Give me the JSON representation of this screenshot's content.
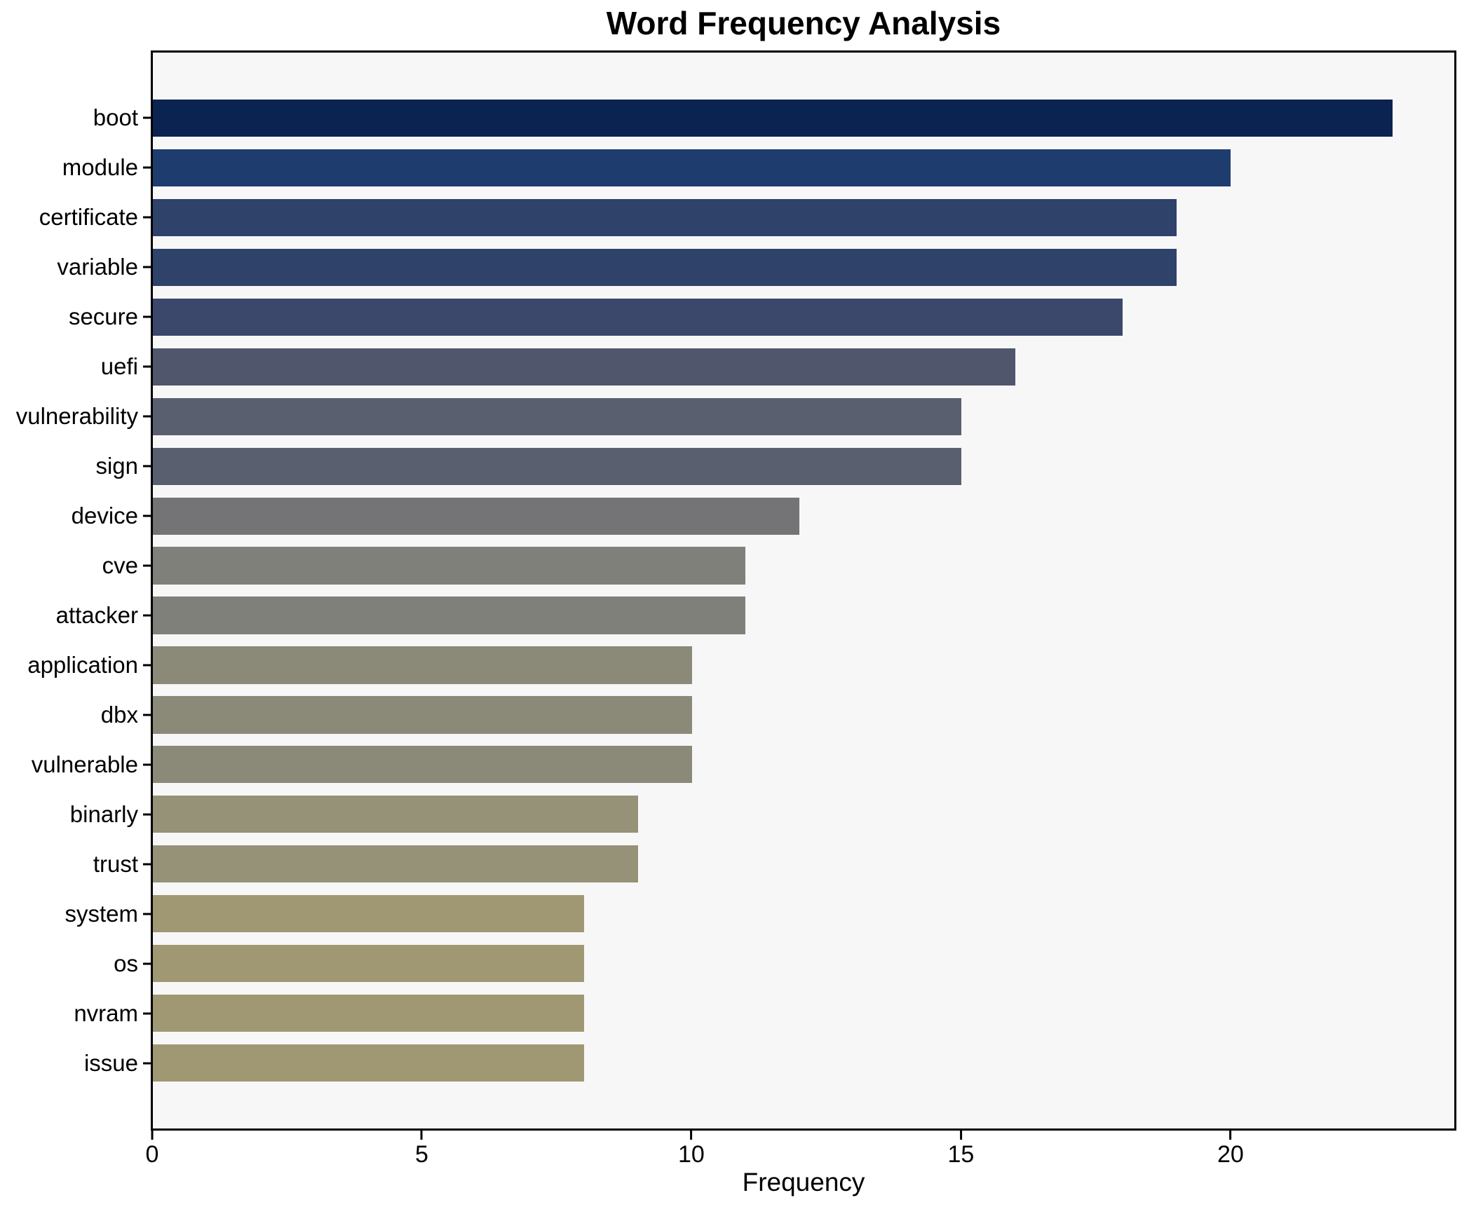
{
  "title": "Word Frequency Analysis",
  "chart_data": {
    "type": "bar",
    "orientation": "horizontal",
    "title": "Word Frequency Analysis",
    "xlabel": "Frequency",
    "ylabel": "",
    "categories": [
      "boot",
      "module",
      "certificate",
      "variable",
      "secure",
      "uefi",
      "vulnerability",
      "sign",
      "device",
      "cve",
      "attacker",
      "application",
      "dbx",
      "vulnerable",
      "binarly",
      "trust",
      "system",
      "os",
      "nvram",
      "issue"
    ],
    "values": [
      23,
      20,
      19,
      19,
      18,
      16,
      15,
      15,
      12,
      11,
      11,
      10,
      10,
      10,
      9,
      9,
      8,
      8,
      8,
      8
    ],
    "bar_colors": [
      "#0a2350",
      "#1e3c6d",
      "#2f4269",
      "#2f4269",
      "#3b486c",
      "#50566b",
      "#5a5f70",
      "#5a5f70",
      "#747476",
      "#80807b",
      "#80807b",
      "#8b8a79",
      "#8b8a79",
      "#8b8a79",
      "#969277",
      "#969277",
      "#9f9873",
      "#9f9873",
      "#9f9873",
      "#9f9873"
    ],
    "xlim": [
      0,
      24.15
    ],
    "xticks": [
      0,
      5,
      10,
      15,
      20
    ],
    "grid": false,
    "legend": false,
    "plot_bg": "#f7f7f8",
    "figure_bg": "#ffffff",
    "spine_color": "#000000",
    "tick_color": "#000000"
  }
}
